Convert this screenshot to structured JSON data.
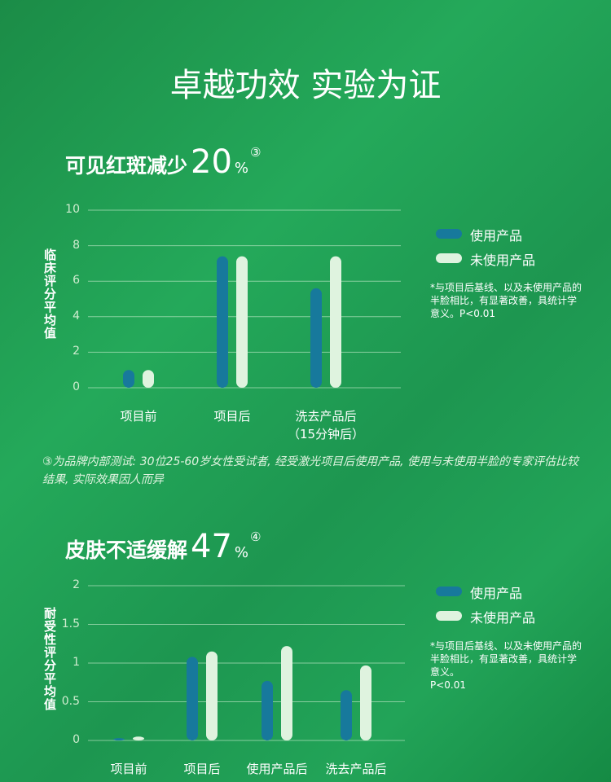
{
  "title": "卓越功效 实验为证",
  "chart_data": [
    {
      "type": "bar",
      "title": "可见红斑减少",
      "highlight": "20",
      "unit": "%",
      "ref": "③",
      "y_label": "临床评分平均值",
      "categories": [
        "项目前",
        "项目后",
        "洗去产品后\n（15分钟后）"
      ],
      "series": [
        {
          "name": "使用产品",
          "color": "#17799c",
          "values": [
            1.0,
            7.4,
            5.6
          ]
        },
        {
          "name": "未使用产品",
          "color": "#dff3df",
          "values": [
            1.0,
            7.4,
            7.4
          ]
        }
      ],
      "ylim": [
        0,
        10
      ],
      "yticks": [
        0,
        2,
        4,
        6,
        8,
        10
      ],
      "grid": true,
      "note": "*与项目后基线、以及未使用产品的半脸相比，有显著改善，具统计学意义。P<0.01"
    },
    {
      "type": "bar",
      "title": "皮肤不适缓解",
      "highlight": "47",
      "unit": "%",
      "ref": "④",
      "y_label": "耐受性评分平均值",
      "categories": [
        "项目前",
        "项目后",
        "使用产品后",
        "洗去产品后"
      ],
      "series": [
        {
          "name": "使用产品",
          "color": "#17799c",
          "values": [
            0.03,
            1.08,
            0.77,
            0.65
          ]
        },
        {
          "name": "未使用产品",
          "color": "#dff3df",
          "values": [
            0.05,
            1.15,
            1.22,
            0.97
          ]
        }
      ],
      "ylim": [
        0,
        2
      ],
      "yticks": [
        0,
        0.5,
        1,
        1.5,
        2
      ],
      "grid": true,
      "note": "*与项目后基线、以及未使用产品的半脸相比，有显著改善，具统计学意义。\nP<0.01"
    }
  ],
  "footnote": "③为品牌内部测试: 30位25-60岁女性受试者, 经受激光项目后使用产品, 使用与未使用半脸的专家评估比较结果, 实际效果因人而异"
}
